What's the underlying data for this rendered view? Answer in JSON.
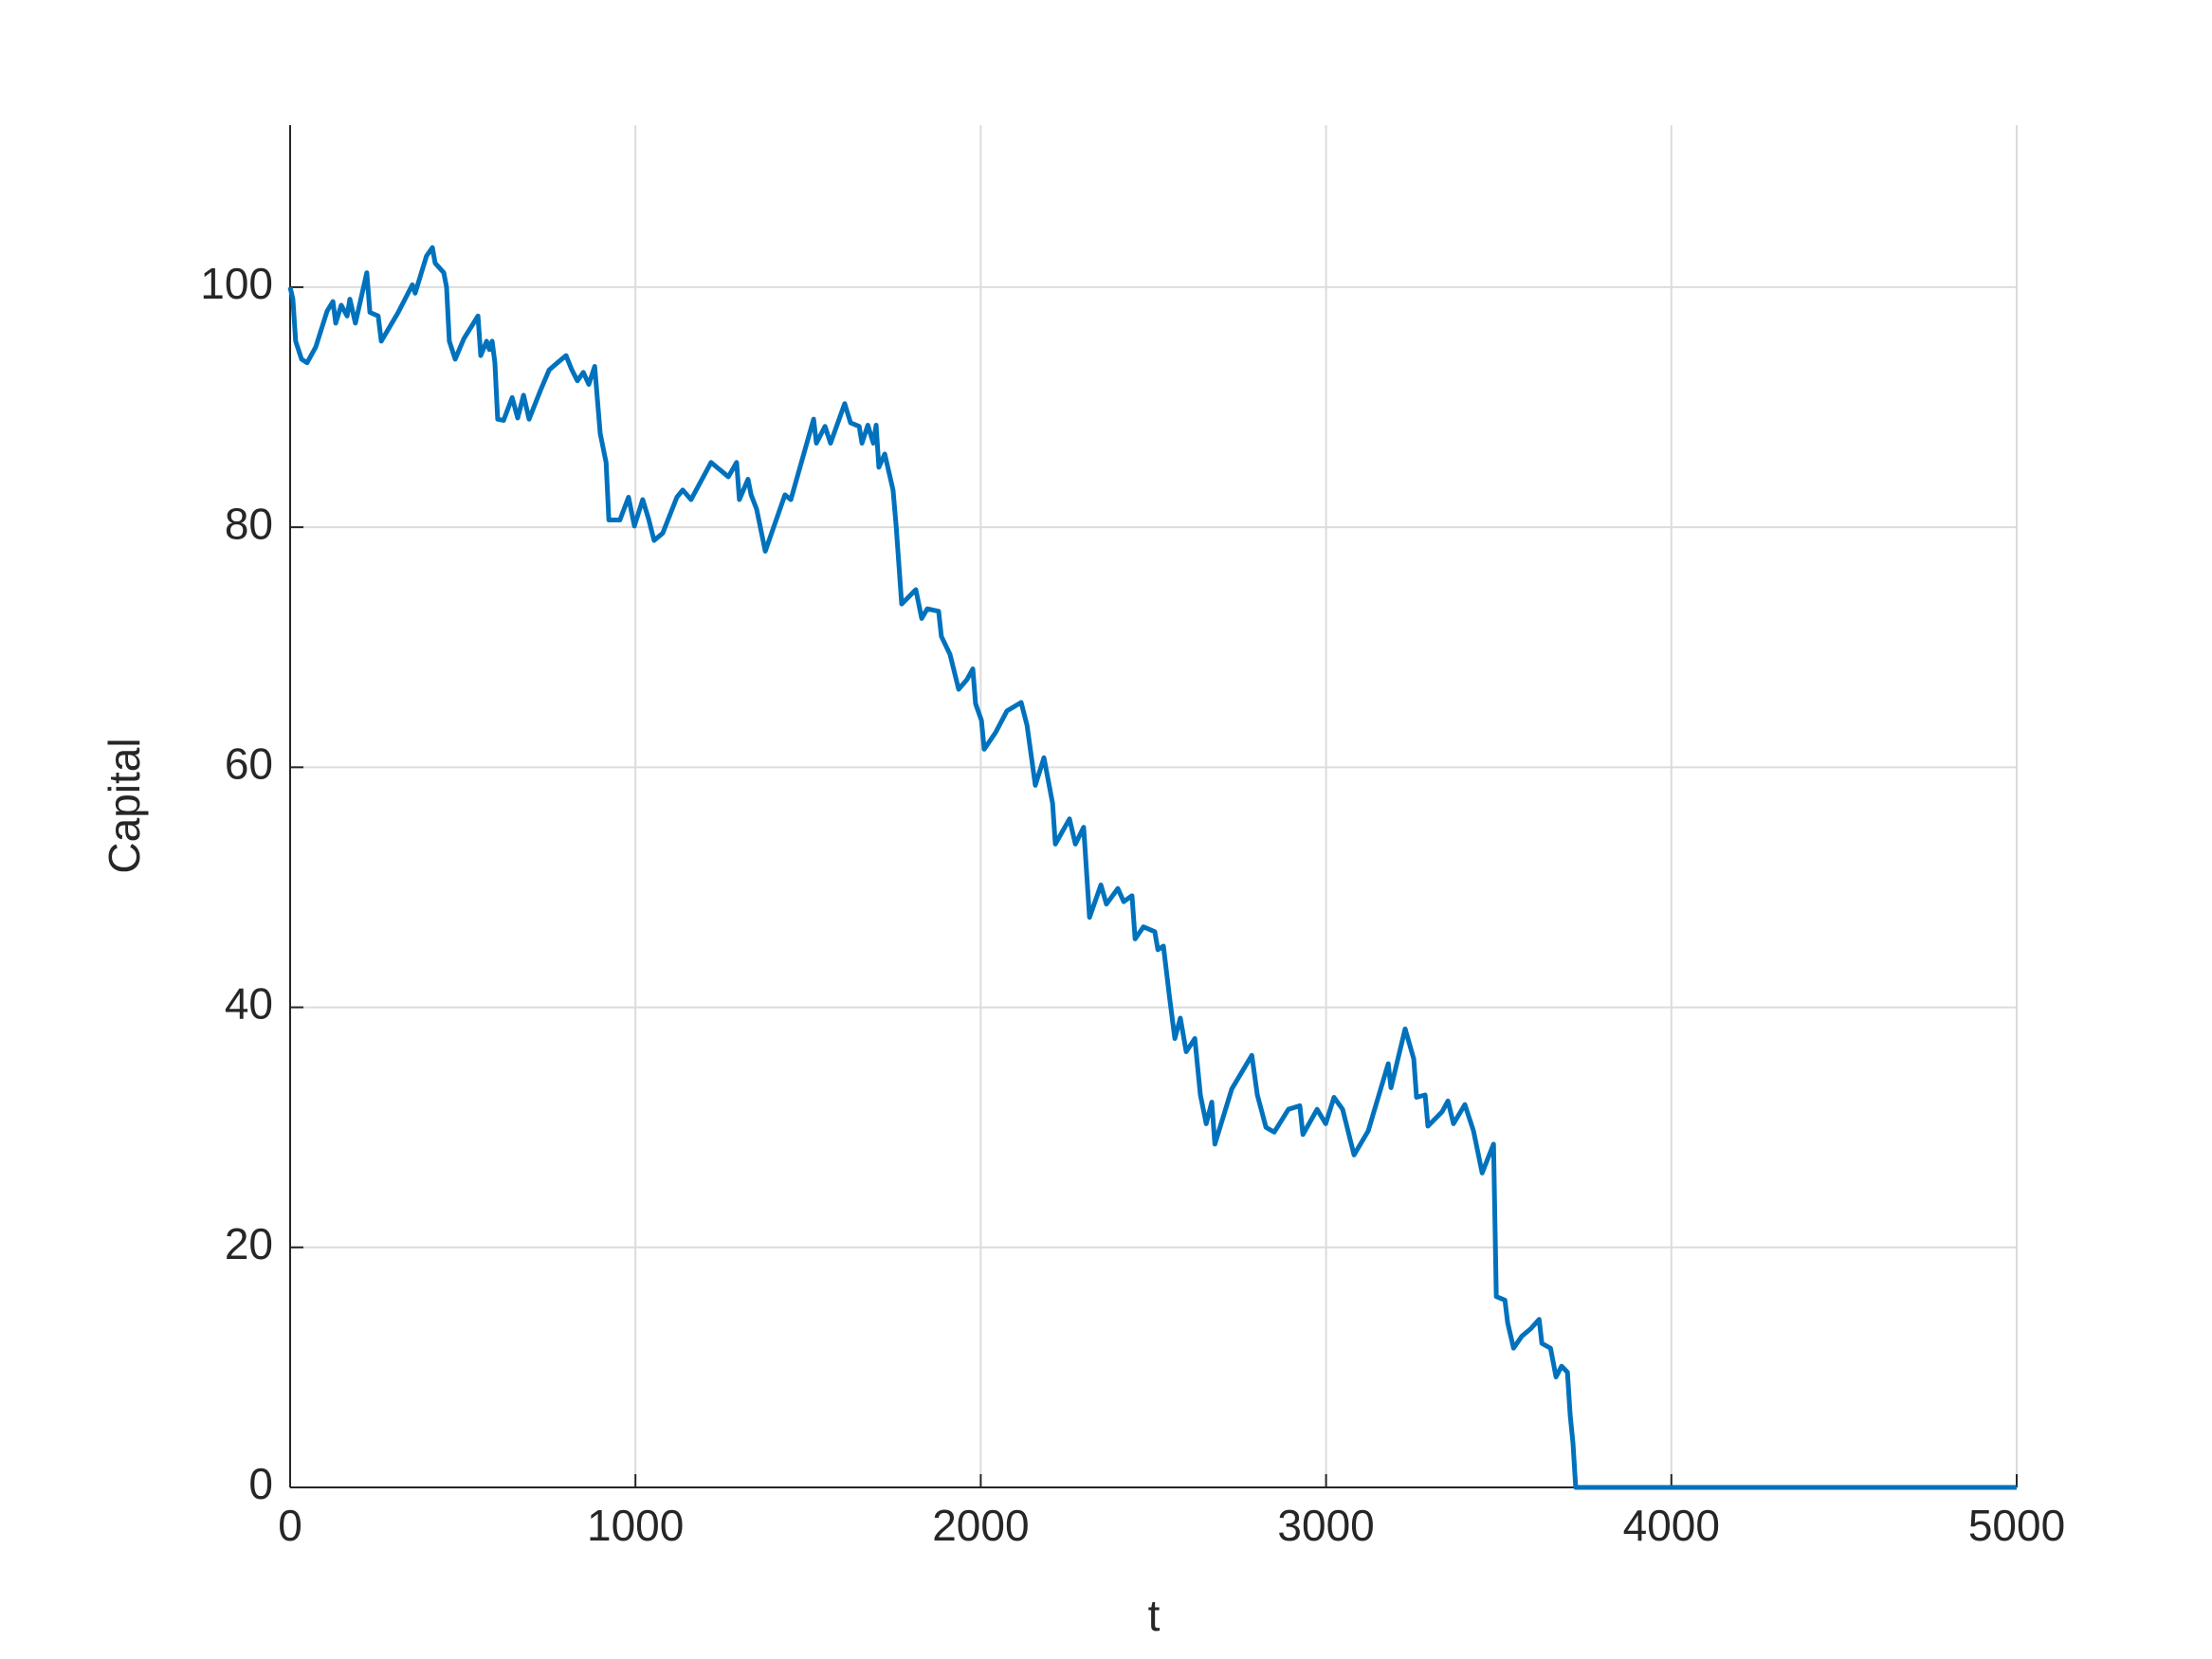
{
  "chart_data": {
    "type": "line",
    "xlabel": "t",
    "ylabel": "Capital",
    "xlim": [
      0,
      5000
    ],
    "ylim": [
      0,
      113.5
    ],
    "xticks": [
      0,
      1000,
      2000,
      3000,
      4000,
      5000
    ],
    "yticks": [
      0,
      20,
      40,
      60,
      80,
      100
    ],
    "grid": true,
    "series": [
      {
        "color": "#0072bd",
        "x": [
          0,
          8,
          16,
          33,
          49,
          74,
          107,
          124,
          132,
          148,
          165,
          173,
          189,
          222,
          231,
          255,
          264,
          313,
          354,
          362,
          395,
          412,
          420,
          445,
          453,
          461,
          478,
          503,
          544,
          552,
          569,
          577,
          585,
          593,
          601,
          618,
          643,
          659,
          676,
          692,
          725,
          750,
          774,
          799,
          816,
          832,
          849,
          865,
          882,
          898,
          915,
          923,
          955,
          980,
          997,
          1021,
          1038,
          1054,
          1079,
          1120,
          1137,
          1161,
          1219,
          1244,
          1269,
          1293,
          1301,
          1326,
          1335,
          1351,
          1376,
          1433,
          1450,
          1516,
          1524,
          1549,
          1565,
          1606,
          1623,
          1648,
          1656,
          1673,
          1689,
          1697,
          1705,
          1722,
          1746,
          1755,
          1771,
          1812,
          1829,
          1845,
          1878,
          1886,
          1911,
          1936,
          1960,
          1977,
          1985,
          2002,
          2010,
          2043,
          2076,
          2117,
          2134,
          2158,
          2183,
          2208,
          2216,
          2257,
          2274,
          2298,
          2315,
          2348,
          2364,
          2397,
          2414,
          2438,
          2447,
          2471,
          2504,
          2513,
          2529,
          2546,
          2562,
          2578,
          2595,
          2620,
          2636,
          2653,
          2669,
          2678,
          2727,
          2785,
          2801,
          2826,
          2850,
          2891,
          2924,
          2933,
          2974,
          2999,
          3023,
          3048,
          3081,
          3122,
          3180,
          3188,
          3229,
          3254,
          3262,
          3287,
          3295,
          3336,
          3353,
          3369,
          3402,
          3427,
          3452,
          3485,
          3493,
          3518,
          3526,
          3543,
          3567,
          3592,
          3617,
          3625,
          3650,
          3666,
          3682,
          3699,
          3707,
          3715,
          3723,
          5000
        ],
        "values": [
          100,
          99,
          95.5,
          94,
          93.7,
          95,
          98,
          98.8,
          97,
          98.5,
          97.6,
          99,
          97,
          101.2,
          97.9,
          97.6,
          95.5,
          97.9,
          100.2,
          99.5,
          102.6,
          103.3,
          102,
          101.2,
          100,
          95.5,
          94,
          95.7,
          97.6,
          94.3,
          95.5,
          94.8,
          95.5,
          93.7,
          89,
          88.9,
          90.8,
          89.1,
          91,
          89,
          91.4,
          93.1,
          93.7,
          94.3,
          93.1,
          92.2,
          92.9,
          91.9,
          93.4,
          87.8,
          85.4,
          80.6,
          80.6,
          82.5,
          80.1,
          82.3,
          80.7,
          78.9,
          79.5,
          82.5,
          83.1,
          82.3,
          85.4,
          84.8,
          84.2,
          85.4,
          82.3,
          84,
          82.7,
          81.5,
          78,
          82.7,
          82.3,
          89,
          87,
          88.4,
          87,
          90.3,
          88.7,
          88.4,
          87,
          88.5,
          87,
          88.5,
          85,
          86.1,
          83.1,
          80.1,
          73.6,
          74.8,
          72.4,
          73.2,
          73,
          70.9,
          69.4,
          66.5,
          67.3,
          68.2,
          65.3,
          63.9,
          61.5,
          62.9,
          64.7,
          65.4,
          63.5,
          58.5,
          60.8,
          57,
          53.6,
          55.7,
          53.6,
          55,
          47.5,
          50.2,
          48.6,
          49.9,
          48.8,
          49.3,
          45.7,
          46.7,
          46.3,
          44.8,
          45.1,
          41,
          37.4,
          39.1,
          36.3,
          37.4,
          32.7,
          30.3,
          32.1,
          28.6,
          33.2,
          36,
          32.7,
          30,
          29.6,
          31.5,
          31.8,
          29.4,
          31.5,
          30.3,
          32.5,
          31.5,
          27.7,
          29.7,
          35.3,
          33.3,
          38.2,
          35.7,
          32.5,
          32.7,
          30.1,
          31.3,
          32.2,
          30.3,
          31.9,
          29.7,
          26.2,
          28.6,
          15.9,
          15.6,
          13.7,
          11.6,
          12.6,
          13.2,
          14,
          12,
          11.6,
          9.2,
          10.1,
          9.6,
          6,
          3.7,
          0,
          0
        ]
      }
    ]
  }
}
